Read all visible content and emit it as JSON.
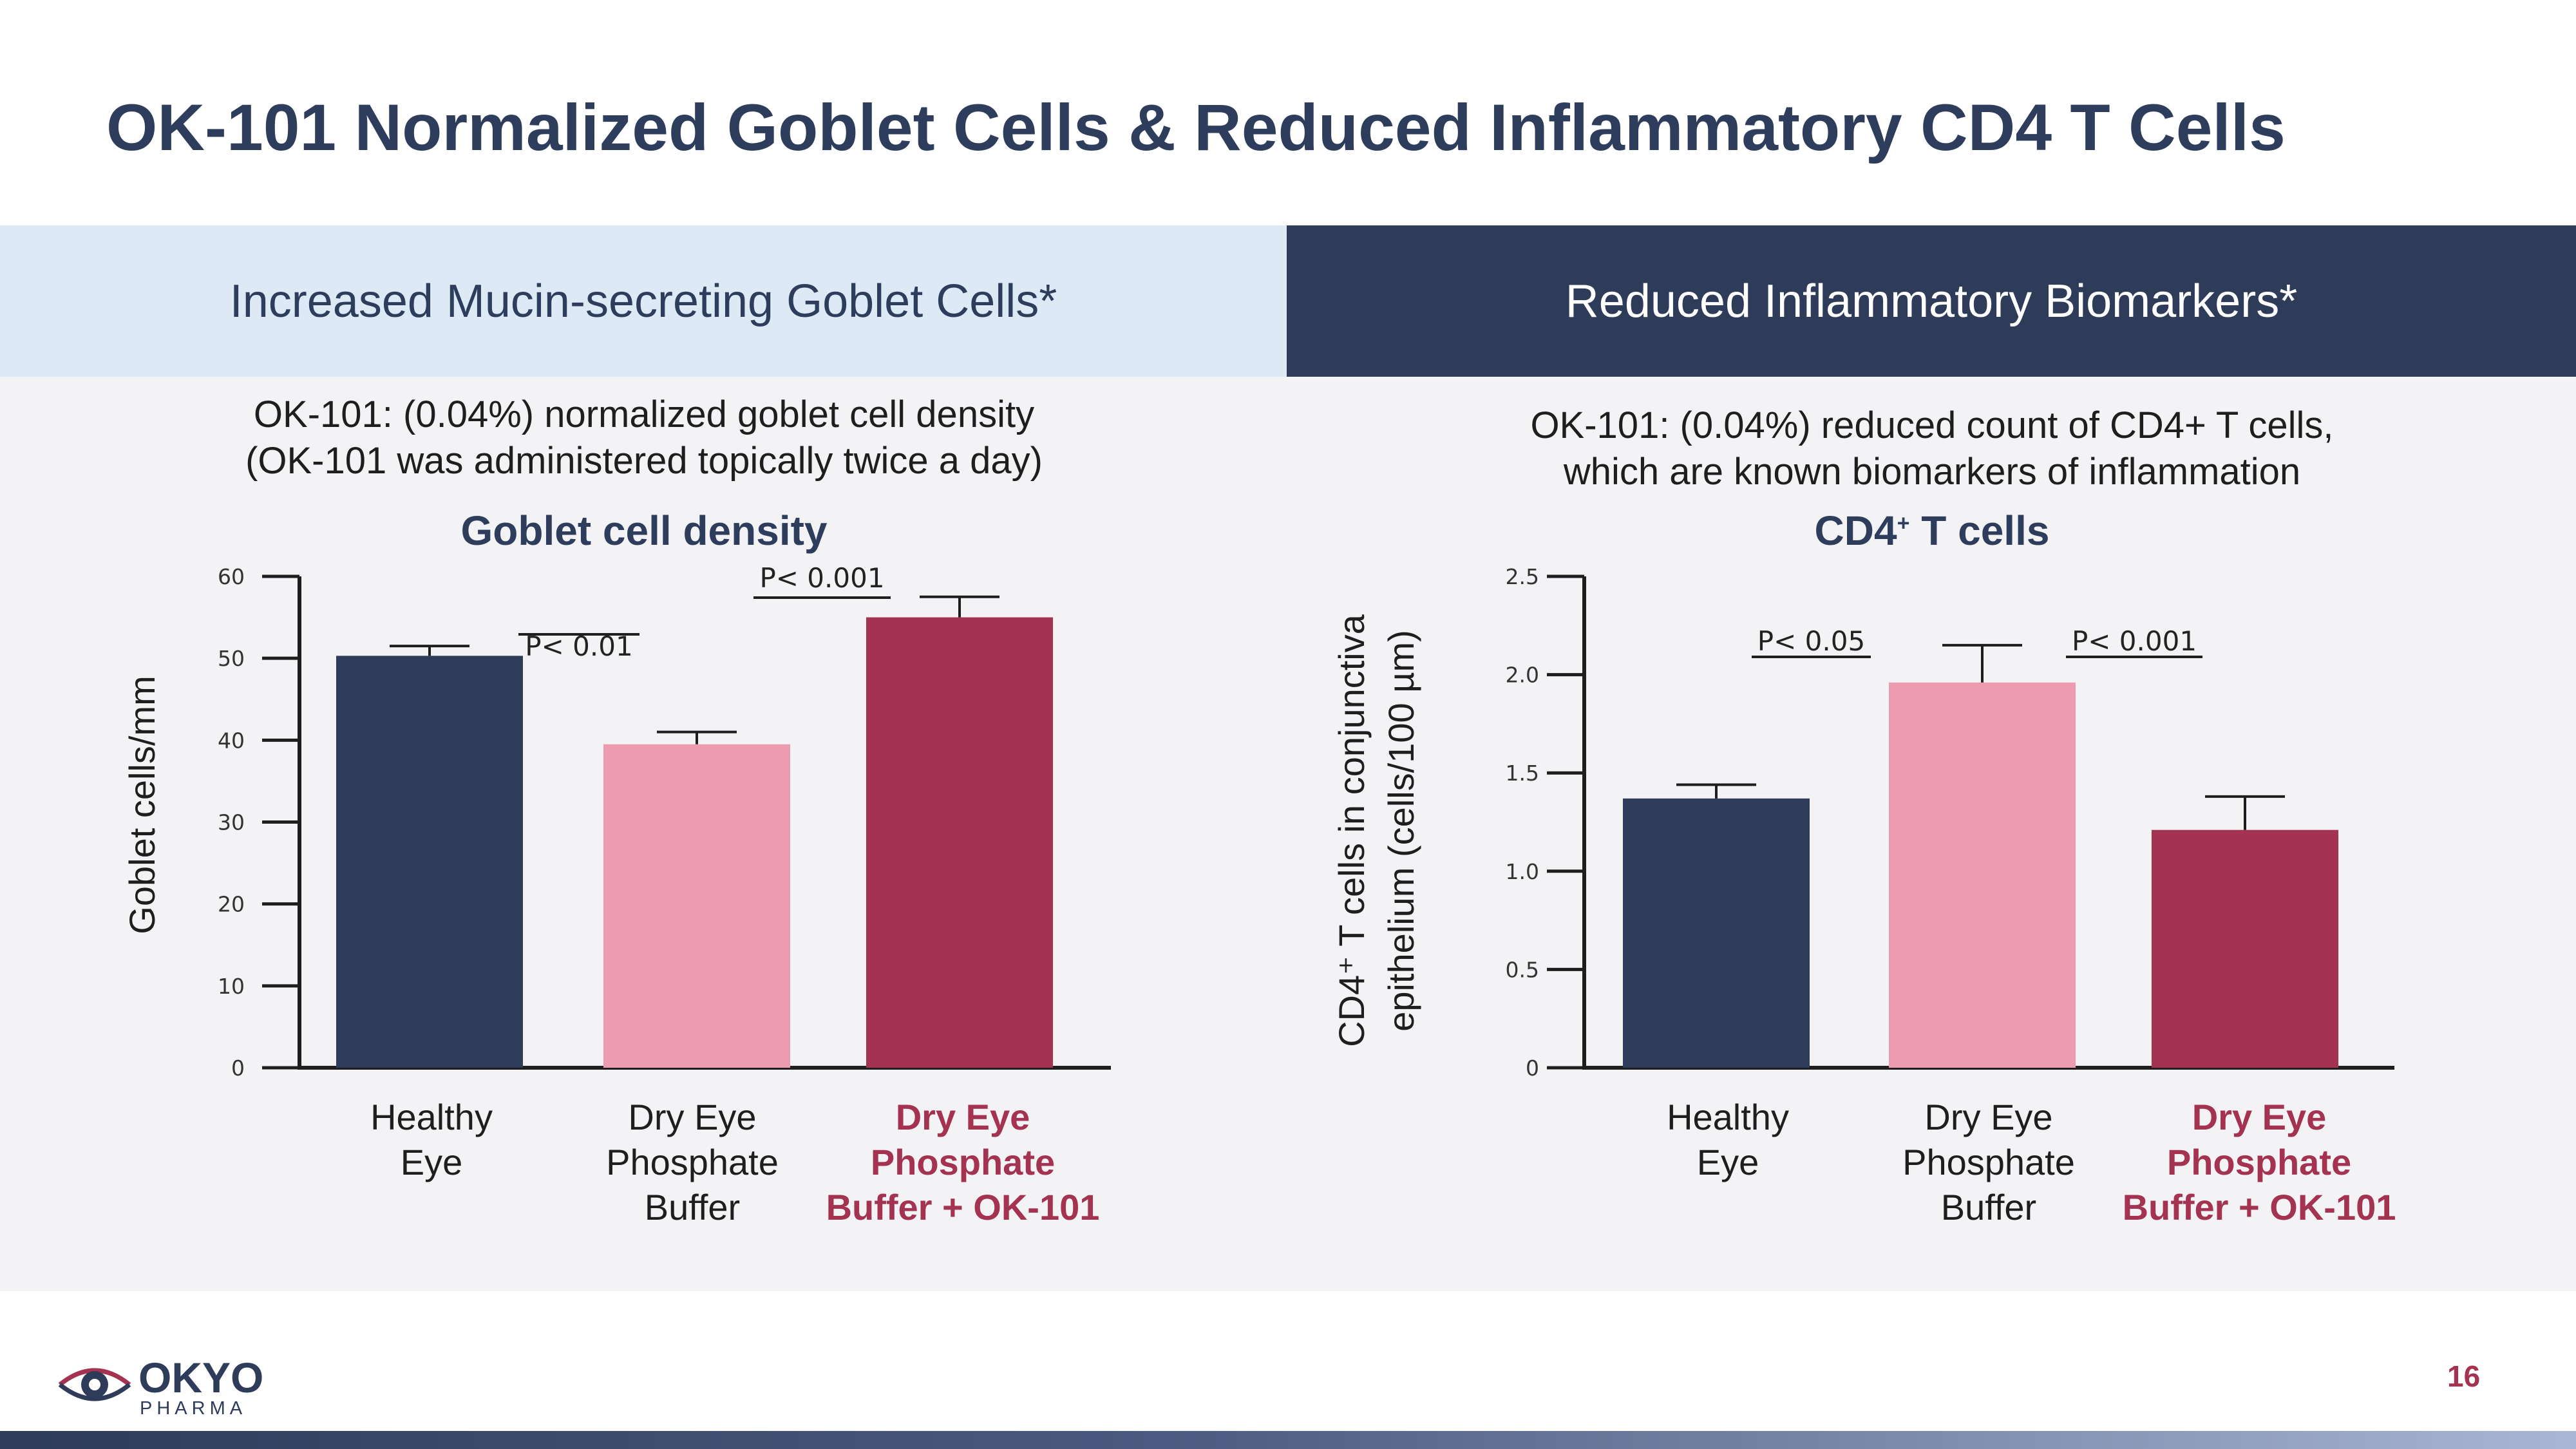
{
  "title": "OK-101 Normalized Goblet Cells & Reduced Inflammatory CD4 T Cells",
  "left_header": "Increased Mucin-secreting Goblet Cells*",
  "right_header": "Reduced Inflammatory Biomarkers*",
  "left_subtitle": {
    "line1": "OK-101: (0.04%) normalized goblet cell density",
    "line2": "(OK-101 was administered topically twice a day)"
  },
  "right_subtitle": {
    "line1": "OK-101: (0.04%) reduced count of CD4+ T cells,",
    "line2": "which are known biomarkers of inflammation"
  },
  "categories": [
    {
      "line1": "Healthy",
      "line2": "Eye",
      "line3": ""
    },
    {
      "line1": "Dry Eye",
      "line2": "Phosphate",
      "line3": "Buffer"
    },
    {
      "line1": "Dry Eye",
      "line2": "Phosphate",
      "line3": "Buffer + OK-101"
    }
  ],
  "colors": {
    "healthy": "#2e3c5a",
    "dry_eye": "#ec9bb0",
    "ok101": "#a33350",
    "text_accent": "#a33350"
  },
  "logo": {
    "name": "OKYO",
    "sub": "PHARMA"
  },
  "page_number": "16",
  "chart_data": [
    {
      "type": "bar",
      "title": "Goblet cell density",
      "xlabel": "",
      "ylabel": "Goblet cells/mm",
      "ylim": [
        0,
        60
      ],
      "yticks": [
        "0",
        "10",
        "20",
        "30",
        "40",
        "50",
        "60"
      ],
      "categories": [
        "Healthy Eye",
        "Dry Eye Phosphate Buffer",
        "Dry Eye Phosphate Buffer + OK-101"
      ],
      "values": [
        50.3,
        39.5,
        55
      ],
      "error_upper": [
        51.5,
        41,
        57.5
      ],
      "annotations": [
        {
          "text": "P< 0.01",
          "between": [
            0,
            1
          ]
        },
        {
          "text": "P< 0.001",
          "between": [
            1,
            2
          ]
        }
      ]
    },
    {
      "type": "bar",
      "title_main": "CD4",
      "title_sup": "+",
      "title_rest": " T cells",
      "xlabel": "",
      "ylabel_line1": "CD4⁺ T cells in conjunctiva",
      "ylabel_line2": "epithelium  (cells/100 µm)",
      "ylim": [
        0,
        2.5
      ],
      "yticks": [
        "0",
        "0.5",
        "1.0",
        "1.5",
        "2.0",
        "2.5"
      ],
      "categories": [
        "Healthy Eye",
        "Dry Eye Phosphate Buffer",
        "Dry Eye Phosphate Buffer + OK-101"
      ],
      "values": [
        1.37,
        1.96,
        1.21
      ],
      "error_upper": [
        1.44,
        2.15,
        1.38
      ],
      "annotations": [
        {
          "text": "P< 0.05",
          "between": [
            0,
            1
          ]
        },
        {
          "text": "P< 0.001",
          "between": [
            1,
            2
          ]
        }
      ]
    }
  ]
}
